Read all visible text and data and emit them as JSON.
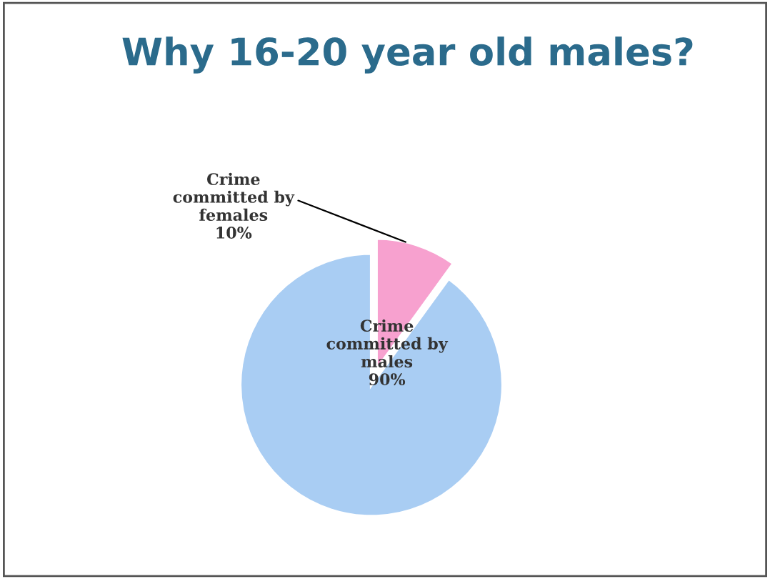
{
  "chart_data": {
    "type": "pie",
    "title": "Why 16-20 year old males?",
    "categories": [
      "Crime\ncommitted by\nfemales",
      "Crime\ncommitted by\nmales"
    ],
    "values": [
      10,
      90
    ],
    "value_labels": [
      "10%",
      "90%"
    ],
    "colors": [
      "#f7a1cf",
      "#a9cdf3"
    ]
  }
}
